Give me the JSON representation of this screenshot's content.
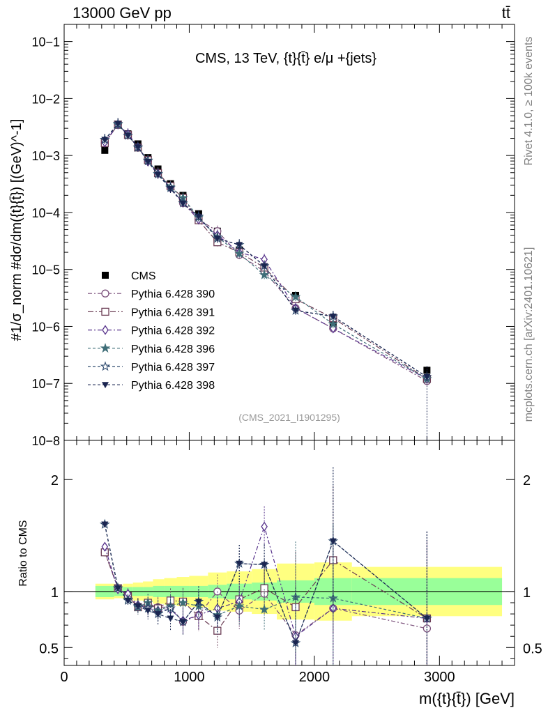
{
  "header": {
    "left_label": "13000 GeV pp",
    "right_label": "tt̄",
    "side_label_top": "Rivet 4.1.0, ≥ 100k events",
    "side_label_bottom": "mcplots.cern.ch [arXiv:2401.10621]"
  },
  "chart_data": [
    {
      "type": "line",
      "panel": "main",
      "title": "CMS, 13 TeV, {t}{t̄} e/μ +{jets}",
      "watermark": "(CMS_2021_I1901295)",
      "ylabel": "#1/σ_norm #dσ/dm({t}{t̄}) [(GeV)^-1]",
      "yscale": "log",
      "xlim": [
        0,
        3600
      ],
      "ylim": [
        1e-08,
        0.2
      ],
      "x": [
        325,
        430,
        510,
        590,
        670,
        750,
        850,
        950,
        1075,
        1225,
        1400,
        1600,
        1850,
        2150,
        2900
      ],
      "legend_position": "middle-left",
      "y_ticks": [
        {
          "value": 1e-08,
          "label": "10−8"
        },
        {
          "value": 1e-07,
          "label": "10−7"
        },
        {
          "value": 1e-06,
          "label": "10−6"
        },
        {
          "value": 1e-05,
          "label": "10−5"
        },
        {
          "value": 0.0001,
          "label": "10−4"
        },
        {
          "value": 0.001,
          "label": "10−3"
        },
        {
          "value": 0.01,
          "label": "10−2"
        },
        {
          "value": 0.1,
          "label": "10−1"
        }
      ],
      "series": [
        {
          "name": "CMS",
          "marker": "square-filled",
          "color": "#000000",
          "values": [
            0.00123,
            0.0034,
            0.0024,
            0.0016,
            0.00092,
            0.00058,
            0.00032,
            0.0002,
            9.5e-05,
            4.7e-05,
            2.2e-05,
            9.5e-06,
            3.5e-06,
            1.1e-06,
            1.7e-07
          ]
        },
        {
          "name": "Pythia 6.428 390",
          "marker": "circle-open",
          "color": "#7a4f7a",
          "values": [
            0.00165,
            0.0035,
            0.0023,
            0.00138,
            0.0008,
            0.0005,
            0.000275,
            0.000146,
            7.5e-05,
            4.7e-05,
            1.8e-05,
            9.3e-06,
            2.1e-06,
            9.2e-07,
            1.1e-07
          ]
        },
        {
          "name": "Pythia 6.428 391",
          "marker": "square-open",
          "color": "#6b3d55",
          "values": [
            0.00165,
            0.0035,
            0.0023,
            0.00138,
            0.00083,
            0.00049,
            0.00029,
            0.00018,
            7.3e-05,
            3e-05,
            2e-05,
            1.08e-05,
            3e-06,
            1.4e-06,
            1.2e-07
          ]
        },
        {
          "name": "Pythia 6.428 392",
          "marker": "diamond-open",
          "color": "#55308a",
          "values": [
            0.0017,
            0.0035,
            0.0024,
            0.00141,
            0.00078,
            0.00048,
            0.00027,
            0.00015,
            7.5e-05,
            4e-05,
            2e-05,
            1.5e-05,
            2.1e-06,
            9.2e-07,
            1.2e-07
          ]
        },
        {
          "name": "Pythia 6.428 396",
          "marker": "star-filled",
          "color": "#3f6e78",
          "values": [
            0.0019,
            0.0035,
            0.00225,
            0.00138,
            0.00082,
            0.00048,
            0.00028,
            0.00018,
            8.2e-05,
            3.7e-05,
            1.9e-05,
            8e-06,
            3.3e-06,
            1.1e-06,
            1.2e-07
          ]
        },
        {
          "name": "Pythia 6.428 397",
          "marker": "star-open",
          "color": "#2e4a6e",
          "values": [
            0.0019,
            0.0036,
            0.00225,
            0.0014,
            0.0008,
            0.00047,
            0.00027,
            0.000146,
            8.5e-05,
            3.5e-05,
            2.7e-05,
            1.15e-05,
            1.9e-06,
            1.5e-06,
            1.3e-07
          ]
        },
        {
          "name": "Pythia 6.428 398",
          "marker": "triangle-down-filled",
          "color": "#1a2550",
          "values": [
            0.0019,
            0.0036,
            0.00225,
            0.0014,
            0.00078,
            0.00046,
            0.00026,
            0.000145,
            8.5e-05,
            3.5e-05,
            2.7e-05,
            1.15e-05,
            1.9e-06,
            1.5e-06,
            1.3e-07
          ]
        }
      ]
    },
    {
      "type": "line",
      "panel": "ratio",
      "ylabel": "Ratio to CMS",
      "xlabel": "m({t}{t̄}) [GeV]",
      "xlim": [
        0,
        3600
      ],
      "ylim": [
        0.34,
        2.35
      ],
      "x_ticks": [
        {
          "value": 0,
          "label": "0"
        },
        {
          "value": 1000,
          "label": "1000"
        },
        {
          "value": 2000,
          "label": "2000"
        },
        {
          "value": 3000,
          "label": "3000"
        }
      ],
      "y_ticks": [
        {
          "value": 0.5,
          "label": "0.5"
        },
        {
          "value": 1,
          "label": "1"
        },
        {
          "value": 2,
          "label": "2"
        }
      ],
      "bin_edges": [
        250,
        400,
        470,
        550,
        630,
        710,
        800,
        900,
        1000,
        1150,
        1300,
        1500,
        1700,
        2000,
        2300,
        3500
      ],
      "band_inner": [
        0.05,
        0.04,
        0.04,
        0.04,
        0.04,
        0.05,
        0.05,
        0.05,
        0.05,
        0.06,
        0.07,
        0.08,
        0.1,
        0.12,
        0.12
      ],
      "band_outer": [
        0.07,
        0.06,
        0.07,
        0.08,
        0.09,
        0.11,
        0.12,
        0.13,
        0.14,
        0.17,
        0.18,
        0.2,
        0.25,
        0.26,
        0.22
      ],
      "x": [
        325,
        430,
        510,
        590,
        670,
        750,
        850,
        950,
        1075,
        1225,
        1400,
        1600,
        1850,
        2150,
        2900
      ],
      "series": [
        {
          "name": "Pythia 6.428 390",
          "values": [
            1.35,
            1.03,
            0.96,
            0.87,
            0.87,
            0.86,
            0.86,
            0.73,
            0.79,
            1.0,
            0.83,
            0.98,
            0.61,
            0.85,
            0.67
          ]
        },
        {
          "name": "Pythia 6.428 391",
          "values": [
            1.35,
            1.03,
            0.96,
            0.86,
            0.9,
            0.85,
            0.92,
            0.91,
            0.78,
            0.65,
            0.93,
            1.03,
            0.86,
            1.28,
            0.76
          ]
        },
        {
          "name": "Pythia 6.428 392",
          "values": [
            1.4,
            1.02,
            0.98,
            0.88,
            0.85,
            0.83,
            0.84,
            0.74,
            0.79,
            0.85,
            0.91,
            1.58,
            0.6,
            0.85,
            0.76
          ]
        },
        {
          "name": "Pythia 6.428 396",
          "values": [
            1.6,
            1.03,
            0.93,
            0.86,
            0.9,
            0.83,
            0.87,
            0.9,
            0.87,
            0.79,
            0.87,
            0.84,
            0.95,
            0.94,
            0.76
          ]
        },
        {
          "name": "Pythia 6.428 397",
          "values": [
            1.6,
            1.03,
            0.92,
            0.87,
            0.85,
            0.8,
            0.85,
            0.73,
            0.91,
            0.77,
            1.25,
            1.24,
            0.54,
            1.45,
            0.76
          ]
        },
        {
          "name": "Pythia 6.428 398",
          "values": [
            1.6,
            1.03,
            0.92,
            0.87,
            0.83,
            0.8,
            0.76,
            0.73,
            0.91,
            0.77,
            1.25,
            1.24,
            0.54,
            1.45,
            0.76
          ]
        }
      ]
    }
  ]
}
